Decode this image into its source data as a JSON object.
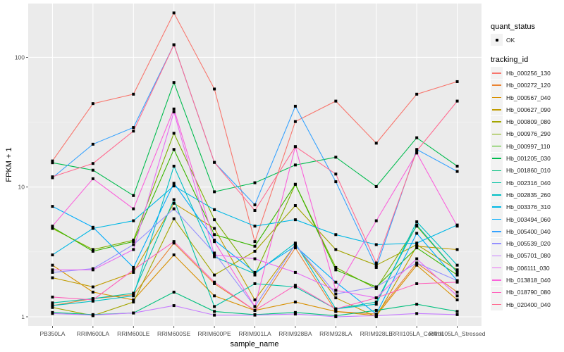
{
  "chart_data": {
    "type": "line",
    "title": "",
    "xlabel": "sample_name",
    "ylabel": "FPKM + 1",
    "yscale": "log10",
    "ylim": [
      0.85,
      260
    ],
    "yticks": [
      1,
      10,
      100
    ],
    "ytick_labels": [
      "1",
      "10",
      "100"
    ],
    "grid": true,
    "legend_position": "right",
    "categories": [
      "PB350LA",
      "RRIM600LA",
      "RRIM600LE",
      "RRIM600SE",
      "RRIM600PE",
      "RRIM901LA",
      "RRIM928BA",
      "RRIM928LA",
      "RRIM928LE",
      "RRII105LA_Control",
      "RRII105LA_Stressed"
    ],
    "shape_legend": {
      "title": "quant_status",
      "entries": [
        "OK"
      ]
    },
    "color_legend_title": "tracking_id",
    "series": [
      {
        "name": "Hb_000256_130",
        "color": "#F8766D",
        "values": [
          15.9,
          44,
          52,
          220,
          57,
          3.8,
          32,
          46,
          21.8,
          52,
          65
        ]
      },
      {
        "name": "Hb_000272_120",
        "color": "#EA8331",
        "values": [
          1.22,
          1.38,
          1.48,
          3.7,
          1.8,
          1.12,
          3.4,
          1.1,
          1.05,
          2.6,
          1.55
        ]
      },
      {
        "name": "Hb_000567_040",
        "color": "#D89000",
        "values": [
          2.5,
          1.55,
          1.35,
          3.0,
          1.45,
          1.12,
          1.3,
          1.1,
          1.02,
          2.5,
          1.35
        ]
      },
      {
        "name": "Hb_000627_090",
        "color": "#C09B00",
        "values": [
          2.0,
          1.7,
          2.2,
          7.5,
          4.8,
          1.35,
          3.6,
          1.4,
          1.0,
          3.5,
          3.3
        ]
      },
      {
        "name": "Hb_000809_080",
        "color": "#A3A500",
        "values": [
          1.18,
          1.02,
          1.3,
          5.7,
          2.1,
          3.2,
          7.2,
          3.3,
          2.5,
          3.6,
          2.3
        ]
      },
      {
        "name": "Hb_000976_290",
        "color": "#7CAE00",
        "values": [
          4.8,
          3.3,
          3.9,
          26,
          5.6,
          2.1,
          10.5,
          2.4,
          1.65,
          5.0,
          2.2
        ]
      },
      {
        "name": "Hb_000997_110",
        "color": "#39B600",
        "values": [
          4.9,
          3.2,
          3.8,
          19.5,
          4.3,
          3.5,
          10.5,
          2.3,
          1.7,
          3.4,
          2.1
        ]
      },
      {
        "name": "Hb_001205_030",
        "color": "#00BB4E",
        "values": [
          15.4,
          13.5,
          8.6,
          64,
          9.2,
          10.8,
          14.8,
          17,
          10.1,
          24,
          14.5
        ]
      },
      {
        "name": "Hb_001860_010",
        "color": "#00BF7D",
        "values": [
          1.08,
          1.04,
          1.07,
          1.55,
          1.1,
          1.04,
          1.08,
          1.02,
          1.12,
          1.25,
          1.1
        ]
      },
      {
        "name": "Hb_002316_040",
        "color": "#00C1A3",
        "values": [
          1.28,
          1.38,
          1.52,
          8.0,
          1.2,
          1.8,
          1.7,
          1.15,
          1.3,
          5.1,
          2.2
        ]
      },
      {
        "name": "Hb_002835_260",
        "color": "#00BFC4",
        "values": [
          1.22,
          1.32,
          1.45,
          14.5,
          2.9,
          2.15,
          3.7,
          1.15,
          1.25,
          5.4,
          2.5
        ]
      },
      {
        "name": "Hb_003376_310",
        "color": "#00B8E5",
        "values": [
          3.0,
          4.8,
          5.5,
          10.2,
          6.7,
          5.0,
          5.6,
          4.3,
          3.6,
          3.7,
          5.1
        ]
      },
      {
        "name": "Hb_003494_060",
        "color": "#00ACFC",
        "values": [
          7.1,
          4.9,
          2.4,
          10.7,
          3.9,
          2.2,
          3.5,
          1.85,
          1.05,
          4.4,
          1.9
        ]
      },
      {
        "name": "Hb_005400_040",
        "color": "#35A2FF",
        "values": [
          11.8,
          21.4,
          28.8,
          125,
          15.5,
          7.3,
          42,
          11,
          2.4,
          19.5,
          13.2
        ]
      },
      {
        "name": "Hb_005539_020",
        "color": "#9590FF",
        "values": [
          2.2,
          2.35,
          3.6,
          6.8,
          3.1,
          1.2,
          3.6,
          1.5,
          1.7,
          2.6,
          1.9
        ]
      },
      {
        "name": "Hb_005701_080",
        "color": "#C77CFF",
        "values": [
          1.06,
          1.03,
          1.07,
          1.22,
          1.03,
          1.03,
          1.05,
          1.0,
          1.02,
          1.06,
          1.04
        ]
      },
      {
        "name": "Hb_006111_030",
        "color": "#E76BF3",
        "values": [
          2.3,
          2.3,
          3.3,
          38,
          3.0,
          2.8,
          2.2,
          1.6,
          1.4,
          2.8,
          1.45
        ]
      },
      {
        "name": "Hb_013818_040",
        "color": "#FA62DB",
        "values": [
          5.0,
          11.6,
          6.8,
          40,
          3.8,
          1.2,
          20.5,
          1.6,
          5.5,
          18.3,
          5.0
        ]
      },
      {
        "name": "Hb_018790_080",
        "color": "#FF62BC",
        "values": [
          1.42,
          1.35,
          2.3,
          3.8,
          1.85,
          1.12,
          1.75,
          1.15,
          1.4,
          1.8,
          1.85
        ]
      },
      {
        "name": "Hb_020400_040",
        "color": "#FF6C91",
        "values": [
          12.0,
          15.2,
          27,
          125,
          15.5,
          6.6,
          20.5,
          12.6,
          2.6,
          19.0,
          46
        ]
      }
    ]
  }
}
